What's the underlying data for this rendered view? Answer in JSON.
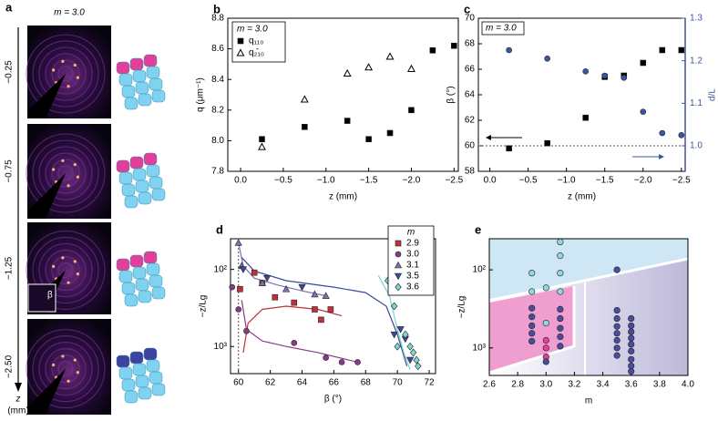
{
  "panel_a": {
    "panel_label": "a",
    "title": "m = 3.0",
    "rows": [
      "−0.25",
      "−0.75",
      "−1.25",
      "−2.50"
    ],
    "axis_label": "z",
    "axis_unit": "(mm)",
    "inset_label": "β"
  },
  "chart_data": [
    {
      "type": "scatter",
      "panel_label": "b",
      "xlabel": "z (mm)",
      "ylabel": "q (μm⁻¹)",
      "annotation": "m = 3.0",
      "legend": "upper left",
      "xlim": [
        0.15,
        -2.55
      ],
      "ylim": [
        7.8,
        8.8
      ],
      "xticks": [
        {
          "value": 0,
          "label": "0.0"
        },
        {
          "value": -0.5,
          "label": "−0.5"
        },
        {
          "value": -1,
          "label": "−1.0"
        },
        {
          "value": -1.5,
          "label": "−1.5"
        },
        {
          "value": -2,
          "label": "−2.0"
        },
        {
          "value": -2.5,
          "label": "−2.5"
        }
      ],
      "yticks": [
        7.8,
        {
          "value": 8,
          "label": "8.0"
        },
        8.2,
        8.4,
        8.6,
        8.8
      ],
      "series": [
        {
          "name": "q₁₁₀",
          "color": "#000000",
          "marker": "square",
          "open": false,
          "x": [
            -0.25,
            -0.75,
            -1.25,
            -1.5,
            -1.75,
            -2.0,
            -2.25,
            -2.5
          ],
          "values": [
            8.01,
            8.09,
            8.13,
            8.01,
            8.05,
            8.2,
            8.59,
            8.62
          ]
        },
        {
          "name": "q₂̄₁₀",
          "color": "#000000",
          "marker": "triangle-up",
          "open": true,
          "x": [
            -0.25,
            -0.75,
            -1.25,
            -1.5,
            -1.75,
            -2.0
          ],
          "values": [
            7.96,
            8.27,
            8.44,
            8.48,
            8.55,
            8.47
          ]
        }
      ]
    },
    {
      "type": "scatter",
      "panel_label": "c",
      "xlabel": "z (mm)",
      "ylabel": "β (°)",
      "y2label": "d/L",
      "annotation": "m = 3.0",
      "hline": 60,
      "xlim": [
        0.15,
        -2.55
      ],
      "ylim": [
        58,
        70
      ],
      "y2lim": [
        0.94,
        1.3
      ],
      "y2color": "#3b55a4",
      "xticks": [
        {
          "value": 0,
          "label": "0.0"
        },
        {
          "value": -0.5,
          "label": "−0.5"
        },
        {
          "value": -1,
          "label": "−1.0"
        },
        {
          "value": -1.5,
          "label": "−1.5"
        },
        {
          "value": -2,
          "label": "−2.0"
        },
        {
          "value": -2.5,
          "label": "−2.5"
        }
      ],
      "yticks": [
        58,
        60,
        62,
        64,
        66,
        68,
        70
      ],
      "y2ticks": [
        {
          "value": 1,
          "label": "1.0"
        },
        1.1,
        1.2,
        1.3
      ],
      "series": [
        {
          "color": "#000000",
          "marker": "square",
          "open": false,
          "x": [
            -0.25,
            -0.75,
            -1.25,
            -1.5,
            -1.75,
            -2.0,
            -2.25,
            -2.5
          ],
          "values": [
            59.8,
            60.2,
            62.2,
            65.4,
            65.5,
            66.5,
            67.5,
            67.5
          ]
        },
        {
          "color": "#3b55a4",
          "marker": "circle",
          "open": false,
          "axis": "y2",
          "x": [
            -0.25,
            -0.75,
            -1.25,
            -1.5,
            -1.75,
            -2.0,
            -2.25,
            -2.5
          ],
          "values": [
            1.225,
            1.205,
            1.175,
            1.165,
            1.16,
            1.08,
            1.03,
            1.025
          ]
        }
      ]
    },
    {
      "type": "scatter",
      "panel_label": "d",
      "xlabel": "β (°)",
      "ylabel": "−z/Lg",
      "legend_title": "m",
      "legend": "upper right",
      "vline": 60,
      "yscale": "log",
      "xlim": [
        59.5,
        72.4
      ],
      "ylim": [
        2250,
        40
      ],
      "xticks": [
        60,
        62,
        64,
        66,
        68,
        70,
        72
      ],
      "yticks": [
        {
          "value": 100,
          "label": "10²"
        },
        {
          "value": 1000,
          "label": "10³"
        }
      ],
      "series": [
        {
          "name": "2.9",
          "color": "#c0303a",
          "marker": "square",
          "open": false,
          "x": [
            60.1,
            61.0,
            61.5,
            62.3,
            63.5,
            64.8,
            65.2,
            65.8
          ],
          "values": [
            180,
            110,
            150,
            230,
            270,
            330,
            450,
            330
          ],
          "fit": {
            "x": [
              60.3,
              60.6,
              61.5,
              63,
              65,
              66.5
            ],
            "y": [
              1200,
              500,
              330,
              300,
              330,
              400
            ]
          }
        },
        {
          "name": "3.0",
          "color": "#8a3a8a",
          "marker": "circle",
          "open": false,
          "x": [
            59.6,
            60.0,
            60.5,
            63.5,
            65.5,
            66.5,
            67.5
          ],
          "values": [
            170,
            330,
            630,
            900,
            1400,
            1600,
            1600
          ],
          "fit": {
            "x": [
              60.2,
              60.5,
              61.5,
              63,
              65,
              67.5
            ],
            "y": [
              250,
              600,
              850,
              1000,
              1200,
              1600
            ]
          }
        },
        {
          "name": "3.1",
          "color": "#7b72b5",
          "marker": "triangle-up",
          "open": false,
          "x": [
            60.0,
            60.2,
            61.5,
            63.0,
            64.8,
            65.5
          ],
          "values": [
            45,
            90,
            150,
            180,
            210,
            220
          ],
          "fit": {
            "x": [
              60.0,
              60.3,
              61,
              62.5,
              64,
              65.5
            ],
            "y": [
              45,
              90,
              130,
              160,
              190,
              220
            ]
          }
        },
        {
          "name": "3.5",
          "color": "#3a4a9a",
          "marker": "triangle-down",
          "open": false,
          "x": [
            60.3,
            61.8,
            64.0,
            69.8,
            70.2,
            70.5,
            70.8
          ],
          "values": [
            100,
            130,
            170,
            700,
            600,
            800,
            1500
          ],
          "fit": {
            "x": [
              60.2,
              61,
              63,
              66,
              68,
              69.3,
              70,
              70.6
            ],
            "y": [
              70,
              105,
              140,
              170,
              200,
              300,
              700,
              1800
            ]
          }
        },
        {
          "name": "3.6",
          "color": "#7fd4d0",
          "marker": "diamond",
          "open": false,
          "x": [
            69.4,
            69.8,
            70.0,
            70.5,
            70.8,
            71.0,
            71.2,
            71.3
          ],
          "values": [
            140,
            300,
            1000,
            700,
            1000,
            1200,
            1500,
            1800
          ],
          "fit": {
            "x": [
              68.8,
              69.5,
              70,
              70.4,
              70.8
            ],
            "y": [
              120,
              220,
              600,
              1200,
              2000
            ]
          }
        }
      ]
    },
    {
      "type": "scatter",
      "panel_label": "e",
      "xlabel": "m",
      "ylabel": "−z/Lg",
      "yscale": "log",
      "xlim": [
        2.6,
        4.0
      ],
      "ylim": [
        2250,
        40
      ],
      "xticks": [
        2.6,
        2.8,
        {
          "value": 3,
          "label": "3.0"
        },
        3.2,
        3.4,
        3.6,
        3.8,
        {
          "value": 4,
          "label": "4.0"
        }
      ],
      "yticks": [
        {
          "value": 100,
          "label": "10²"
        },
        {
          "value": 1000,
          "label": "10³"
        }
      ],
      "series": [
        {
          "color": "#8fd8e0",
          "marker": "circle",
          "open": false,
          "x": [
            2.9,
            2.9,
            3.0,
            3.0,
            3.1,
            3.1,
            3.1,
            3.1
          ],
          "values": [
            110,
            190,
            170,
            480,
            44,
            66,
            110,
            190
          ]
        },
        {
          "color": "#e8409a",
          "marker": "circle",
          "open": false,
          "x": [
            3.0,
            3.0,
            3.0
          ],
          "values": [
            800,
            1000,
            1300
          ]
        },
        {
          "color": "#4a4c9c",
          "marker": "circle",
          "open": false,
          "x": [
            2.9,
            2.9,
            2.9,
            2.9,
            2.9,
            3.0,
            3.1,
            3.1,
            3.1,
            3.1,
            3.1,
            3.5,
            3.5,
            3.5,
            3.5,
            3.5,
            3.5,
            3.5,
            3.5,
            3.6,
            3.6,
            3.6,
            3.6,
            3.6,
            3.6,
            3.6,
            3.6,
            3.6
          ],
          "values": [
            310,
            400,
            520,
            650,
            820,
            1500,
            320,
            420,
            560,
            720,
            950,
            100,
            330,
            420,
            530,
            650,
            800,
            1000,
            1250,
            420,
            520,
            620,
            750,
            900,
            1100,
            1400,
            1700,
            2000
          ]
        }
      ]
    }
  ]
}
